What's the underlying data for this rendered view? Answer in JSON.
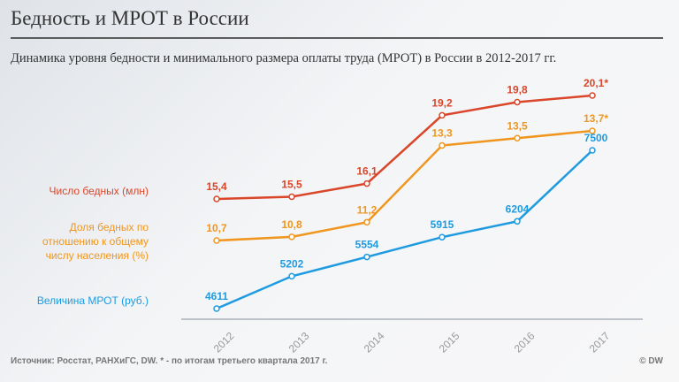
{
  "title": "Бедность и МРОТ в России",
  "subtitle": "Динамика уровня бедности и минимального размера оплаты труда (МРОТ) в России в 2012-2017 гг.",
  "footer": "Источник: Росстат, РАНХиГС, DW.  * - по итогам третьего квартала 2017 г.",
  "copyright": "© DW",
  "chart_data": {
    "type": "line",
    "categories": [
      "2012",
      "2013",
      "2014",
      "2015",
      "2016",
      "2017"
    ],
    "grid": false,
    "legend_placement": "left",
    "series": [
      {
        "name": "Число бедных (млн)",
        "color": "#d9462a",
        "values": [
          15.4,
          15.5,
          16.1,
          19.2,
          19.8,
          20.1
        ],
        "labels": [
          "15,4",
          "15,5",
          "16,1",
          "19,2",
          "19,8",
          "20,1*"
        ]
      },
      {
        "name": "Доля бедных по отношению к общему числу населения (%)",
        "color": "#f0961e",
        "values": [
          10.7,
          10.8,
          11.2,
          13.3,
          13.5,
          13.7
        ],
        "labels": [
          "10,7",
          "10,8",
          "11,2",
          "13,3",
          "13,5",
          "13,7*"
        ]
      },
      {
        "name": "Величина МРОТ (руб.)",
        "color": "#1e9be0",
        "values": [
          4611,
          5202,
          5554,
          5915,
          6204,
          7500
        ],
        "labels": [
          "4611",
          "5202",
          "5554",
          "5915",
          "6204",
          "7500"
        ]
      }
    ],
    "legend_lines": [
      [
        "Число бедных (млн)"
      ],
      [
        "Доля бедных по",
        "отношению к общему",
        "числу населения (%)"
      ],
      [
        "Величина МРОТ (руб.)"
      ]
    ]
  }
}
